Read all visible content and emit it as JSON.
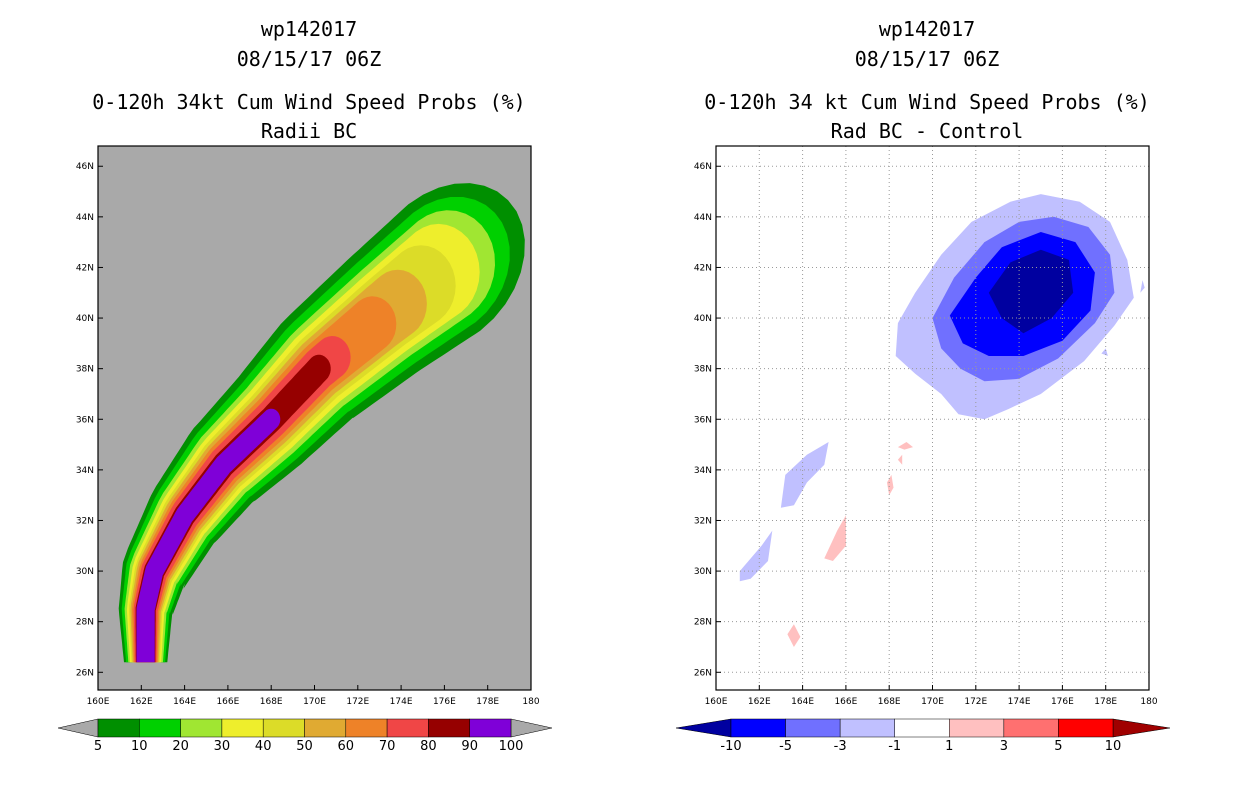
{
  "chart_data": [
    {
      "type": "heatmap",
      "title_lines": [
        "wp142017",
        "08/15/17 06Z",
        "0-120h 34kt Cum Wind Speed Probs (%)",
        "Radii BC"
      ],
      "x_tick_labels": [
        "160E",
        "162E",
        "164E",
        "166E",
        "168E",
        "170E",
        "172E",
        "174E",
        "176E",
        "178E",
        "180"
      ],
      "y_tick_labels": [
        "26N",
        "28N",
        "30N",
        "32N",
        "34N",
        "36N",
        "38N",
        "40N",
        "42N",
        "44N",
        "46N"
      ],
      "xlim": [
        160,
        180
      ],
      "ylim": [
        25.3,
        46.8
      ],
      "grid": false,
      "background": "#a9a9a9",
      "colorbar_labels": [
        "5",
        "10",
        "20",
        "30",
        "40",
        "50",
        "60",
        "70",
        "80",
        "90",
        "100"
      ],
      "colorbar_colors": [
        "#008f00",
        "#00d000",
        "#a0e632",
        "#eeee2c",
        "#dcdc28",
        "#e0aa32",
        "#ee8228",
        "#f04646",
        "#960000",
        "#7f00d8"
      ],
      "track": [
        [
          162.2,
          26.4
        ],
        [
          162.2,
          28.5
        ],
        [
          162.6,
          30.0
        ],
        [
          164.0,
          32.2
        ],
        [
          165.8,
          34.2
        ],
        [
          168.0,
          36.0
        ],
        [
          170.2,
          38.0
        ],
        [
          173.3,
          40.2
        ],
        [
          176.0,
          42.0
        ]
      ],
      "levels": [
        {
          "color": "#008f00",
          "hw_start": 1.0,
          "hw_end": 3.0,
          "end": 8,
          "ext": 1.0
        },
        {
          "color": "#00d000",
          "hw_start": 0.9,
          "hw_end": 2.6,
          "end": 8,
          "ext": 0.6
        },
        {
          "color": "#a0e632",
          "hw_start": 0.8,
          "hw_end": 2.2,
          "end": 8,
          "ext": 0.2
        },
        {
          "color": "#eeee2c",
          "hw_start": 0.72,
          "hw_end": 1.9,
          "end": 7.9,
          "ext": 0
        },
        {
          "color": "#dcdc28",
          "hw_start": 0.65,
          "hw_end": 1.6,
          "end": 7.6,
          "ext": 0
        },
        {
          "color": "#e0aa32",
          "hw_start": 0.6,
          "hw_end": 1.35,
          "end": 7.2,
          "ext": 0
        },
        {
          "color": "#ee8228",
          "hw_start": 0.55,
          "hw_end": 1.1,
          "end": 6.8,
          "ext": 0
        },
        {
          "color": "#f04646",
          "hw_start": 0.5,
          "hw_end": 0.85,
          "end": 6.2,
          "ext": 0
        },
        {
          "color": "#960000",
          "hw_start": 0.45,
          "hw_end": 0.55,
          "end": 6.0,
          "ext": 0
        },
        {
          "color": "#7f00d8",
          "hw_start": 0.42,
          "hw_end": 0.42,
          "end": 5.0,
          "ext": 0
        }
      ]
    },
    {
      "type": "heatmap",
      "title_lines": [
        "wp142017",
        "08/15/17 06Z",
        "0-120h 34 kt Cum Wind Speed Probs (%)",
        "Rad BC - Control"
      ],
      "x_tick_labels": [
        "160E",
        "162E",
        "164E",
        "166E",
        "168E",
        "170E",
        "172E",
        "174E",
        "176E",
        "178E",
        "180"
      ],
      "y_tick_labels": [
        "26N",
        "28N",
        "30N",
        "32N",
        "34N",
        "36N",
        "38N",
        "40N",
        "42N",
        "44N",
        "46N"
      ],
      "xlim": [
        160,
        180
      ],
      "ylim": [
        25.3,
        46.8
      ],
      "grid": true,
      "background": "#ffffff",
      "colorbar_labels": [
        "-10",
        "-5",
        "-3",
        "-1",
        "1",
        "3",
        "5",
        "10"
      ],
      "colorbar_colors": [
        "#0000a0",
        "#0000ff",
        "#7070ff",
        "#c0c0ff",
        "#ffffff",
        "#ffc0c0",
        "#ff7070",
        "#ff0000",
        "#a00000"
      ],
      "contours": [
        {
          "color": "#c0c0ff",
          "points": [
            [
              168.4,
              39.8
            ],
            [
              169.2,
              41.0
            ],
            [
              170.4,
              42.5
            ],
            [
              171.8,
              43.8
            ],
            [
              173.6,
              44.6
            ],
            [
              175.0,
              44.9
            ],
            [
              176.8,
              44.6
            ],
            [
              178.2,
              43.8
            ],
            [
              179.0,
              42.3
            ],
            [
              179.3,
              40.8
            ],
            [
              178.4,
              39.7
            ],
            [
              177.0,
              38.3
            ],
            [
              175.0,
              37.0
            ],
            [
              173.5,
              36.4
            ],
            [
              172.4,
              36.0
            ],
            [
              171.2,
              36.2
            ],
            [
              170.4,
              37.0
            ],
            [
              169.2,
              37.8
            ],
            [
              168.3,
              38.5
            ]
          ]
        },
        {
          "color": "#7070ff",
          "points": [
            [
              170.0,
              40.0
            ],
            [
              171.0,
              41.6
            ],
            [
              172.4,
              43.0
            ],
            [
              174.0,
              43.8
            ],
            [
              175.6,
              44.0
            ],
            [
              177.2,
              43.6
            ],
            [
              178.2,
              42.5
            ],
            [
              178.4,
              41.0
            ],
            [
              177.5,
              39.8
            ],
            [
              175.8,
              38.4
            ],
            [
              174.0,
              37.6
            ],
            [
              172.4,
              37.5
            ],
            [
              171.3,
              38.0
            ],
            [
              170.4,
              38.8
            ]
          ]
        },
        {
          "color": "#0000ff",
          "points": [
            [
              170.8,
              40.1
            ],
            [
              172.0,
              41.6
            ],
            [
              173.2,
              42.8
            ],
            [
              175.0,
              43.4
            ],
            [
              176.6,
              43.0
            ],
            [
              177.5,
              41.8
            ],
            [
              177.3,
              40.3
            ],
            [
              176.0,
              39.1
            ],
            [
              174.2,
              38.5
            ],
            [
              172.6,
              38.5
            ],
            [
              171.4,
              39.0
            ]
          ]
        },
        {
          "color": "#0000a0",
          "points": [
            [
              172.6,
              41.0
            ],
            [
              173.6,
              42.2
            ],
            [
              175.0,
              42.7
            ],
            [
              176.3,
              42.3
            ],
            [
              176.5,
              41.0
            ],
            [
              175.5,
              40.0
            ],
            [
              174.2,
              39.4
            ],
            [
              173.2,
              40.0
            ]
          ]
        },
        {
          "color": "#c0c0ff",
          "points": [
            [
              163.2,
              33.8
            ],
            [
              164.2,
              34.6
            ],
            [
              165.2,
              35.1
            ],
            [
              165.0,
              34.2
            ],
            [
              164.2,
              33.5
            ],
            [
              163.6,
              32.6
            ],
            [
              163.0,
              32.5
            ]
          ]
        },
        {
          "color": "#c0c0ff",
          "points": [
            [
              161.1,
              30.0
            ],
            [
              162.1,
              31.0
            ],
            [
              162.6,
              31.6
            ],
            [
              162.4,
              30.4
            ],
            [
              161.6,
              29.7
            ],
            [
              161.1,
              29.6
            ]
          ]
        },
        {
          "color": "#ffc0c0",
          "points": [
            [
              165.0,
              30.5
            ],
            [
              165.6,
              31.6
            ],
            [
              166.0,
              32.2
            ],
            [
              166.0,
              31.0
            ],
            [
              165.4,
              30.4
            ]
          ]
        },
        {
          "color": "#ffc0c0",
          "points": [
            [
              163.3,
              27.5
            ],
            [
              163.6,
              27.9
            ],
            [
              163.9,
              27.4
            ],
            [
              163.6,
              27.0
            ]
          ]
        },
        {
          "color": "#ffc0c0",
          "points": [
            [
              167.9,
              33.5
            ],
            [
              168.1,
              33.8
            ],
            [
              168.2,
              33.3
            ],
            [
              168.0,
              33.0
            ]
          ]
        },
        {
          "color": "#ffc0c0",
          "points": [
            [
              168.4,
              34.9
            ],
            [
              168.8,
              35.1
            ],
            [
              169.1,
              34.9
            ],
            [
              168.7,
              34.8
            ]
          ]
        },
        {
          "color": "#ffc0c0",
          "points": [
            [
              168.4,
              34.4
            ],
            [
              168.6,
              34.6
            ],
            [
              168.6,
              34.2
            ]
          ]
        },
        {
          "color": "#c0c0ff",
          "points": [
            [
              177.8,
              38.6
            ],
            [
              178.0,
              38.8
            ],
            [
              178.1,
              38.5
            ]
          ]
        },
        {
          "color": "#c0c0ff",
          "points": [
            [
              179.6,
              41.0
            ],
            [
              179.7,
              41.5
            ],
            [
              179.8,
              41.2
            ]
          ]
        }
      ]
    }
  ]
}
